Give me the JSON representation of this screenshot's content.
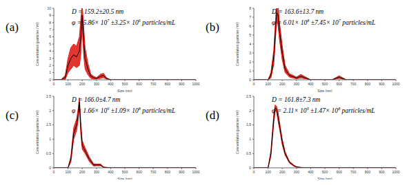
{
  "chart_data": [
    {
      "type": "line",
      "panel": "(a)",
      "xlabel": "Size (nm)",
      "ylabel": "Concentration (particles / ml)",
      "annotations": [
        [
          {
            "text": "D = 159.2±20.5 nm"
          }
        ],
        [
          {
            "text": "φ = 5.86× 10"
          },
          {
            "text": "7",
            "superscript": true
          },
          {
            "text": " ±3.25× 10"
          },
          {
            "text": "6",
            "superscript": true
          },
          {
            "text": " particles/mL"
          }
        ]
      ],
      "x": [
        0,
        50,
        80,
        100,
        120,
        140,
        160,
        180,
        190,
        200,
        210,
        220,
        240,
        260,
        280,
        300,
        330,
        350,
        370,
        400,
        450,
        500,
        1000
      ],
      "xlim": [
        0,
        1000
      ],
      "xticks": [
        0,
        100,
        200,
        300,
        400,
        500,
        600,
        700,
        800,
        900,
        1000
      ],
      "ylim": [
        0,
        10
      ],
      "yticks": [
        0,
        1,
        2,
        3,
        4,
        5,
        6,
        7,
        8,
        9,
        10
      ],
      "series": [
        {
          "color": "#000000",
          "values": [
            0,
            0,
            0.3,
            2,
            3,
            3.5,
            3.2,
            4,
            6,
            9,
            5.5,
            3,
            1.5,
            0.5,
            0.3,
            0.2,
            0.5,
            0.6,
            0.2,
            0,
            0,
            0,
            0
          ],
          "error": {
            "color": "#e0201b",
            "values": [
              0,
              0,
              0.3,
              1,
              1.5,
              1.5,
              1.5,
              2,
              2.5,
              1.5,
              2,
              1.5,
              0.8,
              0.3,
              0.2,
              0.1,
              0.3,
              0.3,
              0.1,
              0,
              0,
              0,
              0
            ]
          }
        }
      ]
    },
    {
      "type": "line",
      "panel": "(b)",
      "xlabel": "Size (nm)",
      "ylabel": "Concentration (particles / ml)",
      "annotations": [
        [
          {
            "text": "D = 163.6±13.7 nm"
          }
        ],
        [
          {
            "text": "φ = 6.01× 10"
          },
          {
            "text": "8",
            "superscript": true
          },
          {
            "text": " ±7.45× 10"
          },
          {
            "text": "7",
            "superscript": true
          },
          {
            "text": " particles/mL"
          }
        ]
      ],
      "x": [
        0,
        100,
        120,
        140,
        150,
        160,
        170,
        180,
        200,
        220,
        250,
        300,
        330,
        400,
        550,
        600,
        650,
        700,
        1000
      ],
      "xlim": [
        0,
        1000
      ],
      "xticks": [
        0,
        100,
        200,
        300,
        400,
        500,
        600,
        700,
        800,
        900,
        1000
      ],
      "ylim": [
        0,
        8
      ],
      "yticks": [
        0,
        1,
        2,
        3,
        4,
        5,
        6,
        7,
        8
      ],
      "series": [
        {
          "color": "#000000",
          "values": [
            0,
            0,
            0.5,
            2.5,
            5,
            7.5,
            7.3,
            5.5,
            3,
            1.2,
            0.5,
            0.2,
            0.4,
            0,
            0,
            0.3,
            0,
            0,
            0
          ],
          "error": {
            "color": "#e0201b",
            "values": [
              0,
              0,
              0.3,
              0.8,
              1,
              1,
              1.2,
              1,
              0.8,
              0.4,
              0.2,
              0.1,
              0.2,
              0,
              0,
              0.15,
              0,
              0,
              0
            ]
          }
        }
      ]
    },
    {
      "type": "line",
      "panel": "(c)",
      "xlabel": "Size (nm)",
      "ylabel": "Concentration (particles / ml)",
      "annotations": [
        [
          {
            "text": "D = 166.0±4.7 nm"
          }
        ],
        [
          {
            "text": "φ = 1.66× 10"
          },
          {
            "text": "9",
            "superscript": true
          },
          {
            "text": " ±1.09× 10"
          },
          {
            "text": "8",
            "superscript": true
          },
          {
            "text": " particles/mL"
          }
        ]
      ],
      "x": [
        0,
        100,
        120,
        140,
        160,
        170,
        180,
        190,
        200,
        220,
        250,
        280,
        300,
        330,
        350,
        400,
        1000
      ],
      "xlim": [
        0,
        1000
      ],
      "xticks": [
        0,
        100,
        200,
        300,
        400,
        500,
        600,
        700,
        800,
        900,
        1000
      ],
      "ylim": [
        0,
        2.5
      ],
      "yticks": [
        0,
        0.5,
        1,
        1.5,
        2,
        2.5
      ],
      "series": [
        {
          "color": "#000000",
          "values": [
            0,
            0,
            0.3,
            1.2,
            1.5,
            1.8,
            2.3,
            1.4,
            0.8,
            0.6,
            0.3,
            0.1,
            0.1,
            0.1,
            0.02,
            0,
            0
          ],
          "error": {
            "color": "#e0201b",
            "values": [
              0,
              0,
              0.1,
              0.2,
              0.2,
              0.2,
              0.15,
              0.2,
              0.15,
              0.1,
              0.08,
              0.04,
              0.03,
              0.03,
              0.01,
              0,
              0
            ]
          }
        }
      ]
    },
    {
      "type": "line",
      "panel": "(d)",
      "xlabel": "Size (nm)",
      "ylabel": "Concentration (particles / ml)",
      "annotations": [
        [
          {
            "text": "D = 161.8±7.3 nm"
          }
        ],
        [
          {
            "text": "φ = 2.11× 10"
          },
          {
            "text": "9",
            "superscript": true
          },
          {
            "text": " ±1.47× 10"
          },
          {
            "text": "8",
            "superscript": true
          },
          {
            "text": " particles/mL"
          }
        ]
      ],
      "x": [
        0,
        100,
        120,
        140,
        150,
        160,
        170,
        180,
        200,
        220,
        250,
        280,
        300,
        350,
        1000
      ],
      "xlim": [
        0,
        1000
      ],
      "xticks": [
        0,
        100,
        200,
        300,
        400,
        500,
        600,
        700,
        800,
        900,
        1000
      ],
      "ylim": [
        0,
        2.5
      ],
      "yticks": [
        0,
        0.5,
        1,
        1.5,
        2,
        2.5
      ],
      "series": [
        {
          "color": "#000000",
          "values": [
            0,
            0,
            0.5,
            1.7,
            2.1,
            2.05,
            1.8,
            1.5,
            0.9,
            0.5,
            0.2,
            0.08,
            0.03,
            0,
            0
          ],
          "error": {
            "color": "#e0201b",
            "values": [
              0,
              0,
              0.1,
              0.15,
              0.1,
              0.1,
              0.15,
              0.12,
              0.1,
              0.06,
              0.03,
              0.02,
              0.01,
              0,
              0
            ]
          }
        }
      ]
    }
  ]
}
